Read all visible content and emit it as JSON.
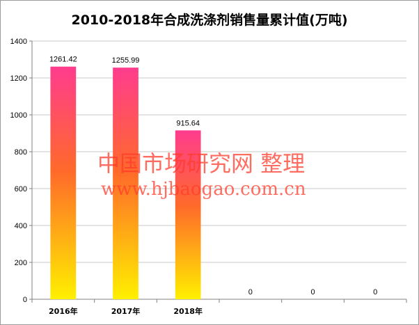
{
  "chart_data": {
    "type": "bar",
    "title": "2010-2018年合成洗涤剂销售量累计值(万吨)",
    "categories": [
      "2016年",
      "2017年",
      "2018年",
      "",
      "",
      ""
    ],
    "values": [
      1261.42,
      1255.99,
      915.64,
      0,
      0,
      0
    ],
    "data_labels": [
      "1261.42",
      "1255.99",
      "915.64",
      "0",
      "0",
      "0"
    ],
    "ylim": [
      0,
      1400
    ],
    "yticks": [
      0,
      200,
      400,
      600,
      800,
      1000,
      1200,
      1400
    ],
    "xlabel": "",
    "ylabel": "",
    "grid": true,
    "bar_gradient": {
      "top": "#ff3c8e",
      "middle": "#ff6a2a",
      "bottom": "#fff000"
    }
  },
  "watermark": {
    "line1": "中国市场研究网  整理",
    "line2": "www.hjbaogao.com.cn"
  }
}
